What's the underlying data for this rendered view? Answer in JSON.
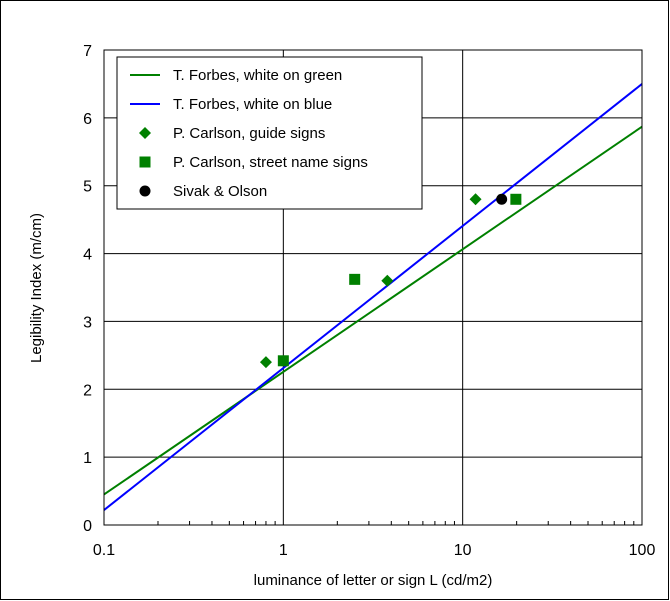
{
  "chart_data": {
    "type": "scatter",
    "xlabel": "luminance of letter or sign L (cd/m2)",
    "ylabel": "Legibility Index (m/cm)",
    "xscale": "log",
    "xlim": [
      0.1,
      100
    ],
    "ylim": [
      0,
      7
    ],
    "xticks": [
      "0.1",
      "1",
      "10",
      "100"
    ],
    "yticks": [
      "0",
      "1",
      "2",
      "3",
      "4",
      "5",
      "6",
      "7"
    ],
    "grid": true,
    "legend_position": "top-left",
    "series": [
      {
        "name": "T. Forbes, white on green",
        "kind": "line",
        "color": "#008000",
        "x": [
          0.1,
          100
        ],
        "y": [
          0.45,
          5.87
        ]
      },
      {
        "name": "T. Forbes, white on blue",
        "kind": "line",
        "color": "#0000ff",
        "x": [
          0.1,
          100
        ],
        "y": [
          0.22,
          6.5
        ]
      },
      {
        "name": "P. Carlson, guide signs",
        "kind": "marker",
        "marker": "diamond",
        "color": "#008000",
        "x": [
          0.8,
          3.8,
          11.8
        ],
        "y": [
          2.4,
          3.6,
          4.8
        ]
      },
      {
        "name": "P. Carlson, street name signs",
        "kind": "marker",
        "marker": "square",
        "color": "#008000",
        "x": [
          1.0,
          2.5,
          19.8
        ],
        "y": [
          2.42,
          3.62,
          4.8
        ]
      },
      {
        "name": "Sivak & Olson",
        "kind": "marker",
        "marker": "circle",
        "color": "#000000",
        "x": [
          16.5
        ],
        "y": [
          4.8
        ]
      }
    ]
  }
}
